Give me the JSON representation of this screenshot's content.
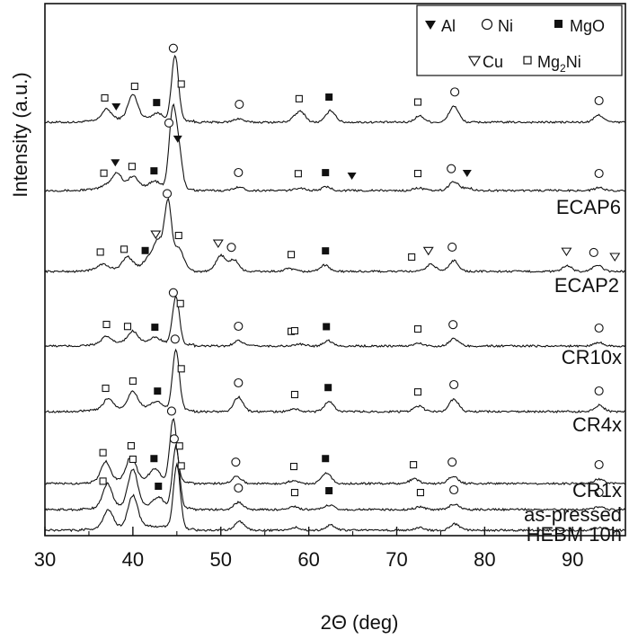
{
  "chart_data": {
    "type": "line",
    "title": "",
    "xlabel": "2Θ (deg)",
    "ylabel": "Intensity (a.u.)",
    "xlim": [
      30,
      96
    ],
    "x_ticks": [
      30,
      40,
      50,
      60,
      70,
      80,
      90
    ],
    "y_ticks": "none",
    "grid": false,
    "legend": {
      "placement": "top-right",
      "entries": [
        {
          "symbol": "filled-down-triangle",
          "label": "Al"
        },
        {
          "symbol": "open-circle",
          "label": "Ni"
        },
        {
          "symbol": "filled-square",
          "label": "MgO"
        },
        {
          "symbol": "open-down-triangle",
          "label": "Cu"
        },
        {
          "symbol": "open-square",
          "label": "Mg",
          "sub": "2",
          "suffix": "Ni"
        }
      ]
    },
    "series": [
      {
        "name": "",
        "peaks": [
          [
            37.0,
            12
          ],
          [
            40.0,
            26
          ],
          [
            42.8,
            6
          ],
          [
            44.8,
            72
          ],
          [
            52.0,
            4
          ],
          [
            58.3,
            3
          ],
          [
            59.1,
            11
          ],
          [
            62.5,
            13
          ],
          [
            72.6,
            7
          ],
          [
            76.5,
            18
          ],
          [
            93.0,
            8
          ]
        ],
        "markers": [
          {
            "x": 36.8,
            "s": "open-square"
          },
          {
            "x": 38.1,
            "s": "filled-down-triangle"
          },
          {
            "x": 40.2,
            "s": "open-square"
          },
          {
            "x": 42.7,
            "s": "filled-square"
          },
          {
            "x": 44.6,
            "s": "open-circle"
          },
          {
            "x": 45.5,
            "s": "open-square"
          },
          {
            "x": 52.1,
            "s": "open-circle"
          },
          {
            "x": 58.9,
            "s": "open-square"
          },
          {
            "x": 62.3,
            "s": "filled-square"
          },
          {
            "x": 72.4,
            "s": "open-square"
          },
          {
            "x": 76.6,
            "s": "open-circle"
          },
          {
            "x": 93.0,
            "s": "open-circle"
          }
        ]
      },
      {
        "name": "ECAP6",
        "peaks": [
          [
            37.0,
            4
          ],
          [
            38.2,
            16
          ],
          [
            40.0,
            11
          ],
          [
            42.5,
            6
          ],
          [
            44.5,
            82
          ],
          [
            45.2,
            42
          ],
          [
            52.0,
            4
          ],
          [
            59.0,
            3
          ],
          [
            62.0,
            4
          ],
          [
            72.5,
            3
          ],
          [
            76.5,
            10
          ],
          [
            78.1,
            3
          ],
          [
            93.0,
            3
          ]
        ],
        "markers": [
          {
            "x": 36.7,
            "s": "open-square"
          },
          {
            "x": 38.0,
            "s": "filled-down-triangle"
          },
          {
            "x": 39.9,
            "s": "open-square"
          },
          {
            "x": 42.4,
            "s": "filled-square"
          },
          {
            "x": 44.1,
            "s": "open-circle"
          },
          {
            "x": 45.1,
            "s": "filled-down-triangle"
          },
          {
            "x": 52.0,
            "s": "open-circle"
          },
          {
            "x": 58.8,
            "s": "open-square"
          },
          {
            "x": 61.9,
            "s": "filled-square"
          },
          {
            "x": 64.9,
            "s": "filled-down-triangle"
          },
          {
            "x": 72.4,
            "s": "open-square"
          },
          {
            "x": 76.2,
            "s": "open-circle"
          },
          {
            "x": 78.0,
            "s": "filled-down-triangle"
          },
          {
            "x": 93.0,
            "s": "open-circle"
          }
        ]
      },
      {
        "name": "ECAP2",
        "peaks": [
          [
            36.5,
            6
          ],
          [
            39.4,
            12
          ],
          [
            41.8,
            10
          ],
          [
            42.9,
            30
          ],
          [
            44.0,
            72
          ],
          [
            45.2,
            24
          ],
          [
            50.0,
            18
          ],
          [
            51.5,
            13
          ],
          [
            57.8,
            3
          ],
          [
            61.8,
            7
          ],
          [
            73.9,
            8
          ],
          [
            76.5,
            12
          ],
          [
            89.4,
            6
          ],
          [
            92.8,
            7
          ]
        ],
        "markers": [
          {
            "x": 36.3,
            "s": "open-square"
          },
          {
            "x": 39.0,
            "s": "open-square"
          },
          {
            "x": 41.4,
            "s": "filled-square"
          },
          {
            "x": 42.6,
            "s": "open-down-triangle"
          },
          {
            "x": 43.9,
            "s": "open-circle"
          },
          {
            "x": 45.2,
            "s": "open-square"
          },
          {
            "x": 49.7,
            "s": "open-down-triangle"
          },
          {
            "x": 51.2,
            "s": "open-circle"
          },
          {
            "x": 58.0,
            "s": "open-square"
          },
          {
            "x": 61.9,
            "s": "filled-square"
          },
          {
            "x": 71.7,
            "s": "open-square"
          },
          {
            "x": 73.6,
            "s": "open-down-triangle"
          },
          {
            "x": 76.3,
            "s": "open-circle"
          },
          {
            "x": 89.3,
            "s": "open-down-triangle"
          },
          {
            "x": 92.4,
            "s": "open-circle"
          },
          {
            "x": 94.8,
            "s": "open-down-triangle"
          }
        ]
      },
      {
        "name": "CR10x",
        "peaks": [
          [
            37.0,
            8
          ],
          [
            40.0,
            12
          ],
          [
            42.6,
            5
          ],
          [
            44.9,
            52
          ],
          [
            52.0,
            6
          ],
          [
            59.0,
            2
          ],
          [
            62.2,
            6
          ],
          [
            72.5,
            3
          ],
          [
            76.5,
            8
          ],
          [
            93.0,
            4
          ]
        ],
        "markers": [
          {
            "x": 37.0,
            "s": "open-square"
          },
          {
            "x": 39.4,
            "s": "open-square"
          },
          {
            "x": 42.5,
            "s": "filled-square"
          },
          {
            "x": 44.6,
            "s": "open-circle"
          },
          {
            "x": 45.4,
            "s": "open-square"
          },
          {
            "x": 52.0,
            "s": "open-circle"
          },
          {
            "x": 58.0,
            "s": "open-square"
          },
          {
            "x": 58.4,
            "s": "open-square"
          },
          {
            "x": 62.0,
            "s": "filled-square"
          },
          {
            "x": 72.4,
            "s": "open-square"
          },
          {
            "x": 76.4,
            "s": "open-circle"
          },
          {
            "x": 93.0,
            "s": "open-circle"
          }
        ]
      },
      {
        "name": "CR4x",
        "peaks": [
          [
            37.2,
            12
          ],
          [
            40.0,
            18
          ],
          [
            42.7,
            7
          ],
          [
            44.9,
            66
          ],
          [
            52.0,
            16
          ],
          [
            58.4,
            3
          ],
          [
            62.3,
            11
          ],
          [
            72.5,
            6
          ],
          [
            76.5,
            14
          ],
          [
            93.0,
            7
          ]
        ],
        "markers": [
          {
            "x": 36.9,
            "s": "open-square"
          },
          {
            "x": 40.0,
            "s": "open-square"
          },
          {
            "x": 42.8,
            "s": "filled-square"
          },
          {
            "x": 44.8,
            "s": "open-circle"
          },
          {
            "x": 45.5,
            "s": "open-square"
          },
          {
            "x": 52.0,
            "s": "open-circle"
          },
          {
            "x": 58.4,
            "s": "open-square"
          },
          {
            "x": 62.2,
            "s": "filled-square"
          },
          {
            "x": 72.4,
            "s": "open-square"
          },
          {
            "x": 76.5,
            "s": "open-circle"
          },
          {
            "x": 93.0,
            "s": "open-circle"
          }
        ]
      },
      {
        "name": "CR1x",
        "peaks": [
          [
            36.9,
            22
          ],
          [
            39.8,
            26
          ],
          [
            42.5,
            12
          ],
          [
            44.6,
            70
          ],
          [
            51.8,
            8
          ],
          [
            58.2,
            3
          ],
          [
            62.0,
            12
          ],
          [
            72.0,
            5
          ],
          [
            76.4,
            8
          ],
          [
            93.0,
            5
          ]
        ],
        "markers": [
          {
            "x": 36.6,
            "s": "open-square"
          },
          {
            "x": 39.8,
            "s": "open-square"
          },
          {
            "x": 42.4,
            "s": "filled-square"
          },
          {
            "x": 44.4,
            "s": "open-circle"
          },
          {
            "x": 45.3,
            "s": "open-square"
          },
          {
            "x": 51.7,
            "s": "open-circle"
          },
          {
            "x": 58.3,
            "s": "open-square"
          },
          {
            "x": 61.9,
            "s": "filled-square"
          },
          {
            "x": 71.9,
            "s": "open-square"
          },
          {
            "x": 76.3,
            "s": "open-circle"
          },
          {
            "x": 93.0,
            "s": "open-circle"
          }
        ]
      },
      {
        "name": "as-pressed",
        "peaks": [
          [
            37.1,
            26
          ],
          [
            40.0,
            40
          ],
          [
            42.9,
            10
          ],
          [
            44.9,
            68
          ],
          [
            52.0,
            8
          ],
          [
            58.3,
            3
          ],
          [
            62.3,
            5
          ],
          [
            72.6,
            3
          ],
          [
            76.5,
            6
          ],
          [
            93.0,
            3
          ]
        ],
        "markers": [
          {
            "x": 36.6,
            "s": "open-square"
          },
          {
            "x": 40.0,
            "s": "open-square"
          },
          {
            "x": 42.9,
            "s": "filled-square"
          },
          {
            "x": 44.7,
            "s": "open-circle"
          },
          {
            "x": 45.5,
            "s": "open-square"
          },
          {
            "x": 52.0,
            "s": "open-circle"
          },
          {
            "x": 58.4,
            "s": "open-square"
          },
          {
            "x": 62.3,
            "s": "filled-square"
          },
          {
            "x": 72.7,
            "s": "open-square"
          },
          {
            "x": 76.5,
            "s": "open-circle"
          },
          {
            "x": 93.0,
            "s": "open-circle"
          }
        ]
      },
      {
        "name": "HEBM 10h",
        "peaks": [],
        "markers": []
      }
    ]
  }
}
